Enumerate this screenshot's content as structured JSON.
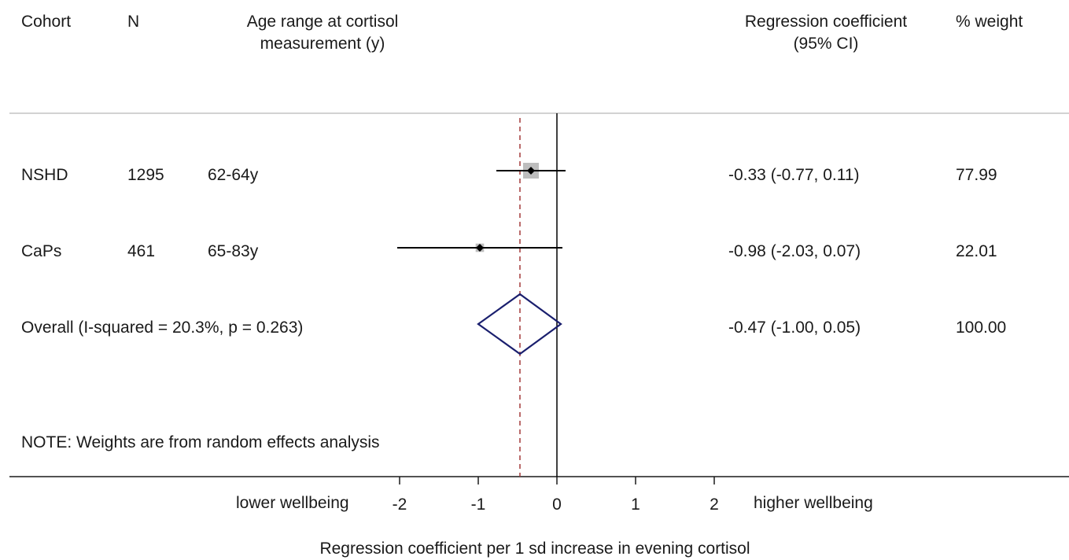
{
  "headers": {
    "cohort": "Cohort",
    "n": "N",
    "age_line1": "Age range at cortisol",
    "age_line2": "measurement (y)",
    "coef_line1": "Regression coefficient",
    "coef_line2": "(95% CI)",
    "weight": "% weight"
  },
  "rows": [
    {
      "cohort": "NSHD",
      "n": "1295",
      "age": "62-64y",
      "ci_text": "-0.33 (-0.77, 0.11)",
      "weight": "77.99"
    },
    {
      "cohort": "CaPs",
      "n": "461",
      "age": "65-83y",
      "ci_text": "-0.98 (-2.03, 0.07)",
      "weight": "22.01"
    }
  ],
  "overall": {
    "label": "Overall  (I-squared = 20.3%, p = 0.263)",
    "ci_text": "-0.47 (-1.00, 0.05)",
    "weight": "100.00"
  },
  "note": "NOTE: Weights are from random effects analysis",
  "axis": {
    "left_label": "lower wellbeing",
    "right_label": "higher wellbeing",
    "xlabel": "Regression coefficient per 1 sd increase in evening cortisol"
  },
  "colors": {
    "marker": "#000000",
    "weight_box": "#bdbdbd",
    "diamond": "#1a1f6e",
    "null_line": "#000000",
    "overall_line": "#a33a3a"
  },
  "chart_data": {
    "type": "forest",
    "xlabel": "Regression coefficient per 1 sd increase in evening cortisol",
    "x_ticks": [
      -2,
      -1,
      0,
      1,
      2
    ],
    "null_value": 0,
    "studies": [
      {
        "name": "NSHD",
        "estimate": -0.33,
        "lower": -0.77,
        "upper": 0.11,
        "weight": 77.99
      },
      {
        "name": "CaPs",
        "estimate": -0.98,
        "lower": -2.03,
        "upper": 0.07,
        "weight": 22.01
      }
    ],
    "overall": {
      "estimate": -0.47,
      "lower": -1.0,
      "upper": 0.05,
      "weight": 100.0
    }
  }
}
